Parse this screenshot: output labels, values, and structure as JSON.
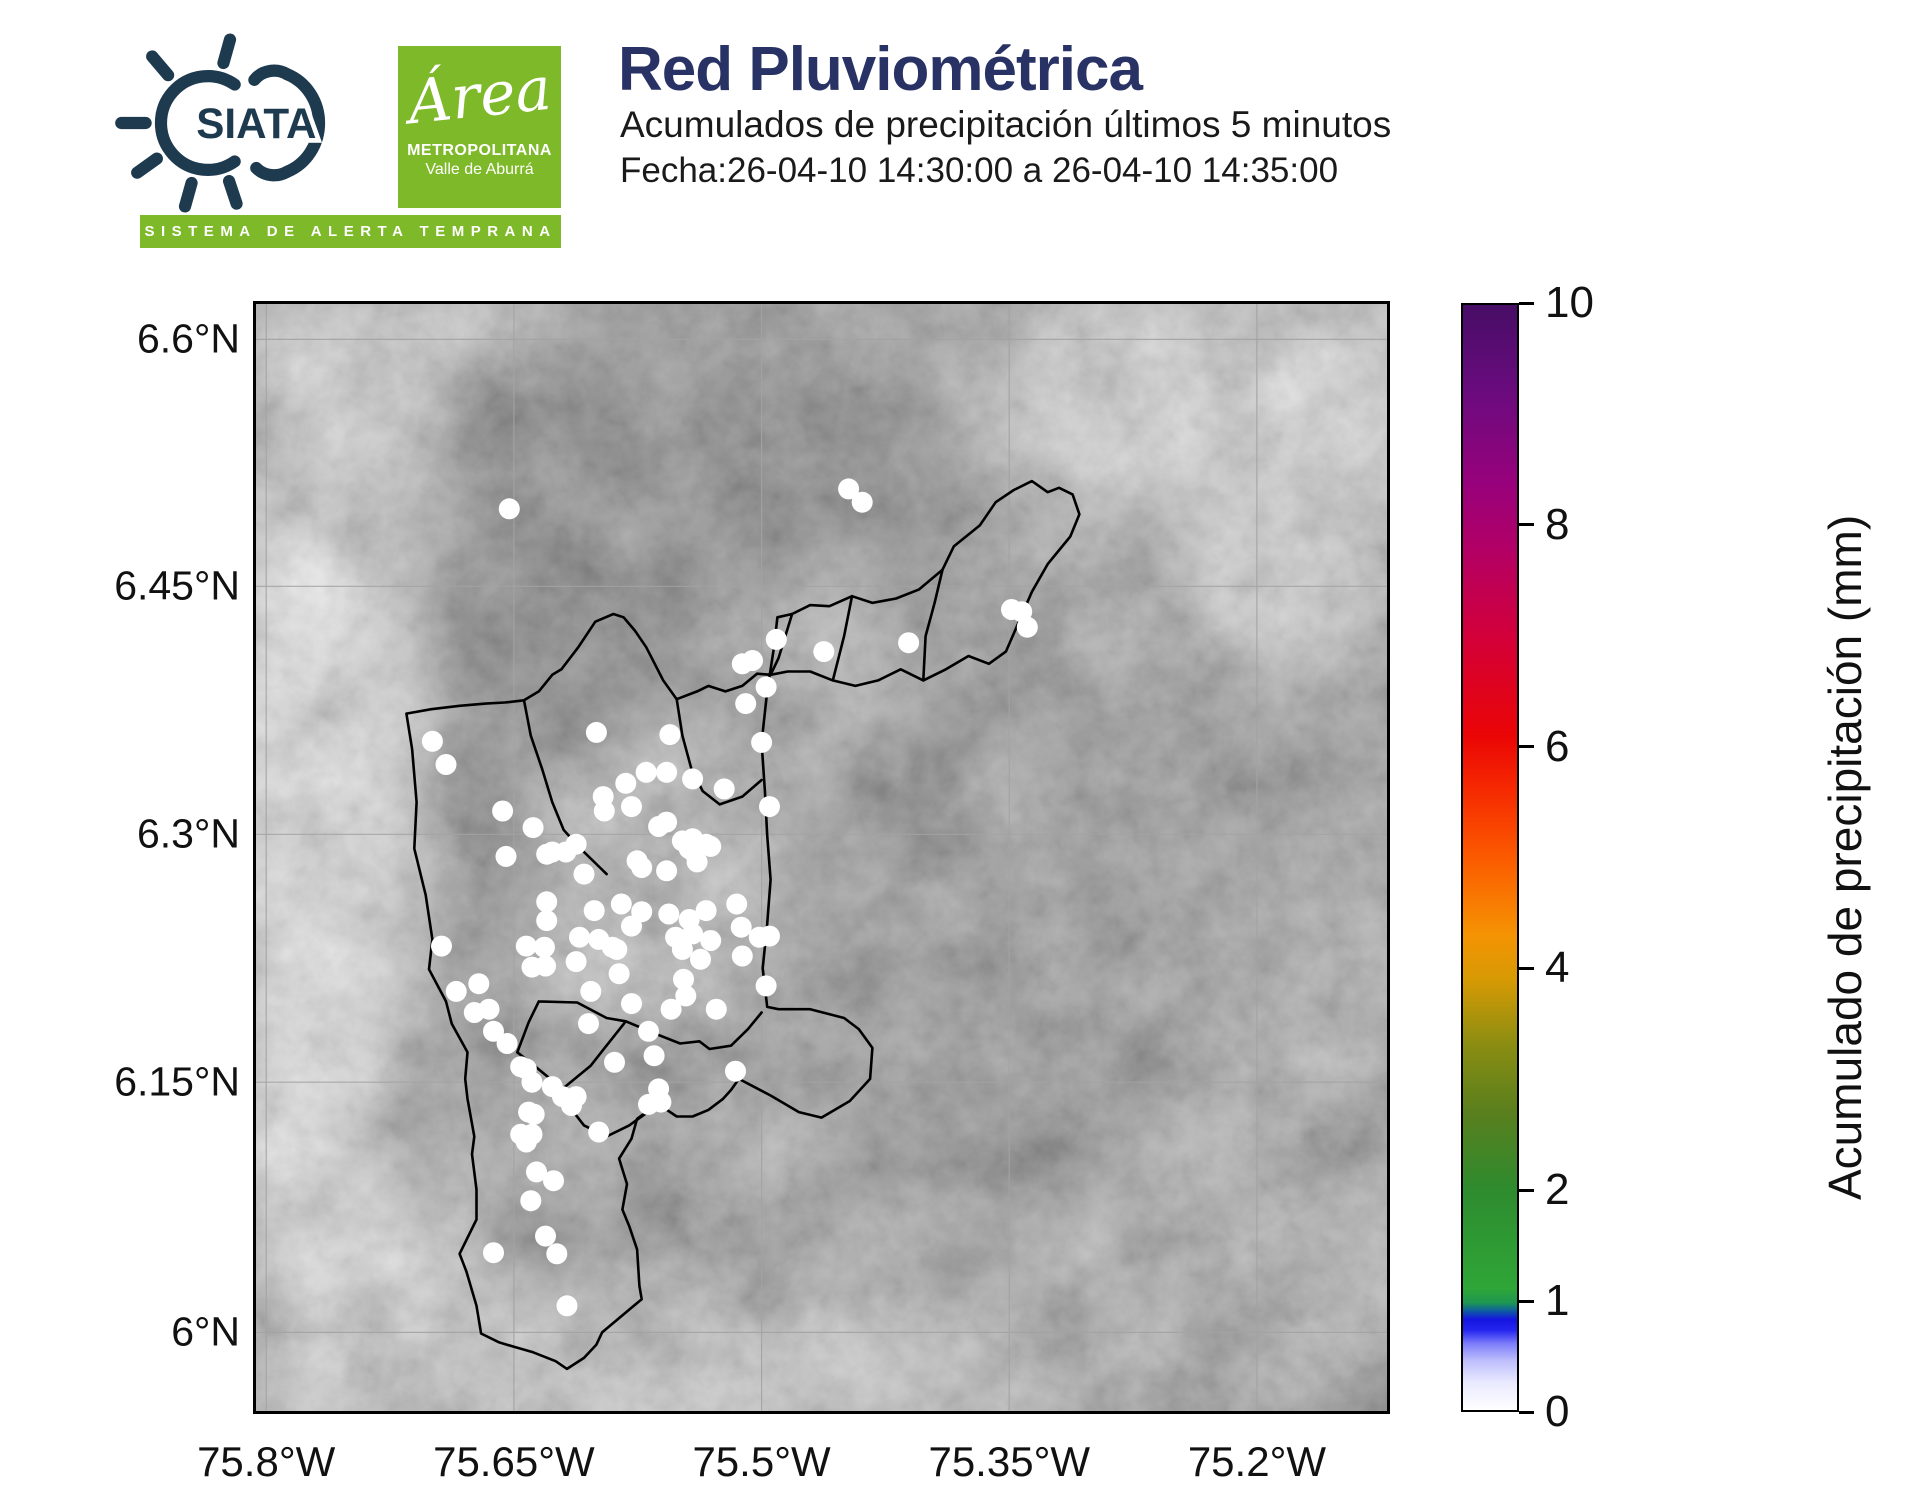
{
  "header": {
    "title": "Red Pluviométrica",
    "subtitle": "Acumulados de precipitación últimos 5 minutos",
    "date_line": "Fecha:26-04-10 14:30:00 a 26-04-10 14:35:00",
    "siata_text": "SIATA",
    "banner_text": "SISTEMA DE ALERTA TEMPRANA",
    "amva": {
      "script": "Área",
      "line1": "METROPOLITANA",
      "line2": "Valle de Aburrá"
    }
  },
  "colors": {
    "brand_green": "#7db928",
    "brand_navy": "#1e3a4f",
    "title_navy": "#293264",
    "station_marker": "#ffffff",
    "boundary": "#000000"
  },
  "map": {
    "x_ticks": [
      {
        "label": "75.8°W",
        "f": 0.009
      },
      {
        "label": "75.65°W",
        "f": 0.228
      },
      {
        "label": "75.5°W",
        "f": 0.447
      },
      {
        "label": "75.35°W",
        "f": 0.666
      },
      {
        "label": "75.2°W",
        "f": 0.885
      }
    ],
    "y_ticks": [
      {
        "label": "6.6°N",
        "f": 0.032
      },
      {
        "label": "6.45°N",
        "f": 0.255
      },
      {
        "label": "6.3°N",
        "f": 0.479
      },
      {
        "label": "6.15°N",
        "f": 0.703
      },
      {
        "label": "6°N",
        "f": 0.929
      }
    ],
    "boundaries": [
      [
        [
          0.133,
          0.37
        ],
        [
          0.138,
          0.402
        ],
        [
          0.142,
          0.45
        ],
        [
          0.14,
          0.492
        ],
        [
          0.15,
          0.534
        ],
        [
          0.156,
          0.574
        ],
        [
          0.153,
          0.601
        ],
        [
          0.168,
          0.63
        ],
        [
          0.173,
          0.65
        ],
        [
          0.187,
          0.676
        ],
        [
          0.185,
          0.7
        ],
        [
          0.187,
          0.718
        ],
        [
          0.193,
          0.752
        ],
        [
          0.191,
          0.768
        ],
        [
          0.195,
          0.8
        ],
        [
          0.195,
          0.827
        ],
        [
          0.18,
          0.858
        ],
        [
          0.186,
          0.874
        ],
        [
          0.195,
          0.905
        ],
        [
          0.199,
          0.93
        ],
        [
          0.215,
          0.938
        ],
        [
          0.228,
          0.942
        ],
        [
          0.245,
          0.947
        ],
        [
          0.265,
          0.955
        ],
        [
          0.275,
          0.962
        ],
        [
          0.29,
          0.952
        ],
        [
          0.301,
          0.94
        ],
        [
          0.306,
          0.929
        ],
        [
          0.327,
          0.911
        ],
        [
          0.341,
          0.899
        ],
        [
          0.339,
          0.887
        ],
        [
          0.337,
          0.854
        ],
        [
          0.33,
          0.833
        ],
        [
          0.324,
          0.818
        ],
        [
          0.328,
          0.795
        ],
        [
          0.321,
          0.772
        ],
        [
          0.332,
          0.754
        ],
        [
          0.337,
          0.736
        ],
        [
          0.349,
          0.727
        ],
        [
          0.359,
          0.725
        ],
        [
          0.372,
          0.734
        ],
        [
          0.386,
          0.734
        ],
        [
          0.4,
          0.728
        ],
        [
          0.413,
          0.718
        ],
        [
          0.42,
          0.71
        ],
        [
          0.427,
          0.7
        ],
        [
          0.442,
          0.708
        ],
        [
          0.455,
          0.715
        ],
        [
          0.48,
          0.73
        ],
        [
          0.5,
          0.735
        ],
        [
          0.525,
          0.72
        ],
        [
          0.543,
          0.7
        ],
        [
          0.545,
          0.672
        ],
        [
          0.533,
          0.655
        ],
        [
          0.52,
          0.645
        ],
        [
          0.49,
          0.637
        ],
        [
          0.462,
          0.637
        ],
        [
          0.452,
          0.635
        ],
        [
          0.448,
          0.6
        ],
        [
          0.452,
          0.56
        ],
        [
          0.455,
          0.52
        ],
        [
          0.452,
          0.48
        ],
        [
          0.45,
          0.44
        ],
        [
          0.447,
          0.396
        ],
        [
          0.452,
          0.35
        ],
        [
          0.458,
          0.31
        ],
        [
          0.461,
          0.283
        ],
        [
          0.474,
          0.28
        ],
        [
          0.49,
          0.272
        ],
        [
          0.507,
          0.273
        ],
        [
          0.527,
          0.264
        ],
        [
          0.545,
          0.27
        ],
        [
          0.566,
          0.266
        ],
        [
          0.586,
          0.258
        ],
        [
          0.607,
          0.24
        ],
        [
          0.617,
          0.219
        ],
        [
          0.64,
          0.2
        ],
        [
          0.654,
          0.179
        ],
        [
          0.67,
          0.168
        ],
        [
          0.686,
          0.16
        ],
        [
          0.7,
          0.17
        ],
        [
          0.71,
          0.166
        ],
        [
          0.722,
          0.172
        ],
        [
          0.728,
          0.19
        ],
        [
          0.72,
          0.21
        ],
        [
          0.7,
          0.235
        ],
        [
          0.686,
          0.26
        ],
        [
          0.663,
          0.314
        ],
        [
          0.648,
          0.325
        ],
        [
          0.63,
          0.318
        ],
        [
          0.61,
          0.33
        ],
        [
          0.59,
          0.34
        ],
        [
          0.57,
          0.33
        ],
        [
          0.55,
          0.34
        ],
        [
          0.53,
          0.345
        ],
        [
          0.51,
          0.34
        ],
        [
          0.49,
          0.332
        ],
        [
          0.47,
          0.332
        ],
        [
          0.455,
          0.335
        ],
        [
          0.443,
          0.334
        ],
        [
          0.43,
          0.345
        ],
        [
          0.415,
          0.35
        ],
        [
          0.4,
          0.345
        ],
        [
          0.39,
          0.35
        ],
        [
          0.372,
          0.357
        ],
        [
          0.36,
          0.34
        ],
        [
          0.345,
          0.31
        ],
        [
          0.335,
          0.295
        ],
        [
          0.325,
          0.283
        ],
        [
          0.316,
          0.28
        ],
        [
          0.3,
          0.287
        ],
        [
          0.285,
          0.31
        ],
        [
          0.27,
          0.33
        ],
        [
          0.262,
          0.335
        ],
        [
          0.25,
          0.35
        ],
        [
          0.237,
          0.358
        ],
        [
          0.22,
          0.36
        ],
        [
          0.203,
          0.361
        ],
        [
          0.18,
          0.363
        ],
        [
          0.155,
          0.366
        ],
        [
          0.133,
          0.37
        ]
      ],
      [
        [
          0.25,
          0.63
        ],
        [
          0.284,
          0.631
        ],
        [
          0.31,
          0.645
        ],
        [
          0.327,
          0.648
        ],
        [
          0.306,
          0.675
        ],
        [
          0.296,
          0.688
        ],
        [
          0.271,
          0.709
        ],
        [
          0.246,
          0.688
        ],
        [
          0.231,
          0.676
        ],
        [
          0.241,
          0.649
        ],
        [
          0.25,
          0.63
        ]
      ],
      [
        [
          0.327,
          0.648
        ],
        [
          0.355,
          0.66
        ],
        [
          0.375,
          0.668
        ],
        [
          0.392,
          0.666
        ],
        [
          0.401,
          0.673
        ],
        [
          0.42,
          0.67
        ],
        [
          0.435,
          0.655
        ],
        [
          0.447,
          0.64
        ]
      ],
      [
        [
          0.271,
          0.709
        ],
        [
          0.277,
          0.725
        ],
        [
          0.29,
          0.742
        ],
        [
          0.31,
          0.752
        ],
        [
          0.33,
          0.742
        ],
        [
          0.345,
          0.731
        ],
        [
          0.359,
          0.725
        ]
      ],
      [
        [
          0.237,
          0.358
        ],
        [
          0.243,
          0.39
        ],
        [
          0.253,
          0.42
        ],
        [
          0.262,
          0.45
        ],
        [
          0.272,
          0.475
        ],
        [
          0.285,
          0.49
        ],
        [
          0.3,
          0.505
        ],
        [
          0.31,
          0.515
        ]
      ],
      [
        [
          0.372,
          0.357
        ],
        [
          0.377,
          0.39
        ],
        [
          0.385,
          0.42
        ],
        [
          0.395,
          0.44
        ],
        [
          0.41,
          0.452
        ],
        [
          0.43,
          0.445
        ],
        [
          0.447,
          0.43
        ]
      ],
      [
        [
          0.474,
          0.28
        ],
        [
          0.468,
          0.3
        ],
        [
          0.462,
          0.32
        ],
        [
          0.455,
          0.335
        ]
      ],
      [
        [
          0.527,
          0.264
        ],
        [
          0.52,
          0.3
        ],
        [
          0.515,
          0.32
        ],
        [
          0.51,
          0.34
        ]
      ],
      [
        [
          0.607,
          0.24
        ],
        [
          0.6,
          0.27
        ],
        [
          0.592,
          0.3
        ],
        [
          0.59,
          0.34
        ]
      ]
    ],
    "stations": [
      [
        0.224,
        0.185
      ],
      [
        0.524,
        0.167
      ],
      [
        0.536,
        0.179
      ],
      [
        0.668,
        0.276
      ],
      [
        0.677,
        0.278
      ],
      [
        0.682,
        0.292
      ],
      [
        0.577,
        0.306
      ],
      [
        0.502,
        0.314
      ],
      [
        0.46,
        0.303
      ],
      [
        0.439,
        0.322
      ],
      [
        0.43,
        0.325
      ],
      [
        0.433,
        0.361
      ],
      [
        0.451,
        0.346
      ],
      [
        0.156,
        0.395
      ],
      [
        0.168,
        0.416
      ],
      [
        0.218,
        0.458
      ],
      [
        0.245,
        0.473
      ],
      [
        0.262,
        0.495
      ],
      [
        0.283,
        0.488
      ],
      [
        0.301,
        0.387
      ],
      [
        0.307,
        0.445
      ],
      [
        0.308,
        0.458
      ],
      [
        0.327,
        0.433
      ],
      [
        0.332,
        0.454
      ],
      [
        0.345,
        0.423
      ],
      [
        0.363,
        0.423
      ],
      [
        0.366,
        0.389
      ],
      [
        0.377,
        0.485
      ],
      [
        0.386,
        0.483
      ],
      [
        0.356,
        0.472
      ],
      [
        0.363,
        0.468
      ],
      [
        0.383,
        0.492
      ],
      [
        0.398,
        0.488
      ],
      [
        0.402,
        0.49
      ],
      [
        0.447,
        0.396
      ],
      [
        0.414,
        0.438
      ],
      [
        0.454,
        0.454
      ],
      [
        0.386,
        0.429
      ],
      [
        0.221,
        0.499
      ],
      [
        0.257,
        0.497
      ],
      [
        0.274,
        0.495
      ],
      [
        0.29,
        0.515
      ],
      [
        0.337,
        0.503
      ],
      [
        0.341,
        0.509
      ],
      [
        0.363,
        0.512
      ],
      [
        0.387,
        0.495
      ],
      [
        0.39,
        0.504
      ],
      [
        0.398,
        0.548
      ],
      [
        0.425,
        0.542
      ],
      [
        0.429,
        0.563
      ],
      [
        0.257,
        0.54
      ],
      [
        0.257,
        0.557
      ],
      [
        0.239,
        0.58
      ],
      [
        0.255,
        0.581
      ],
      [
        0.256,
        0.598
      ],
      [
        0.244,
        0.599
      ],
      [
        0.283,
        0.594
      ],
      [
        0.286,
        0.572
      ],
      [
        0.299,
        0.548
      ],
      [
        0.303,
        0.574
      ],
      [
        0.315,
        0.581
      ],
      [
        0.319,
        0.583
      ],
      [
        0.323,
        0.542
      ],
      [
        0.332,
        0.562
      ],
      [
        0.341,
        0.549
      ],
      [
        0.365,
        0.551
      ],
      [
        0.371,
        0.572
      ],
      [
        0.377,
        0.583
      ],
      [
        0.383,
        0.556
      ],
      [
        0.386,
        0.569
      ],
      [
        0.393,
        0.592
      ],
      [
        0.402,
        0.575
      ],
      [
        0.43,
        0.589
      ],
      [
        0.445,
        0.572
      ],
      [
        0.454,
        0.571
      ],
      [
        0.164,
        0.58
      ],
      [
        0.177,
        0.621
      ],
      [
        0.197,
        0.614
      ],
      [
        0.193,
        0.64
      ],
      [
        0.206,
        0.637
      ],
      [
        0.21,
        0.657
      ],
      [
        0.222,
        0.668
      ],
      [
        0.234,
        0.689
      ],
      [
        0.239,
        0.691
      ],
      [
        0.244,
        0.703
      ],
      [
        0.262,
        0.707
      ],
      [
        0.271,
        0.716
      ],
      [
        0.283,
        0.716
      ],
      [
        0.296,
        0.621
      ],
      [
        0.294,
        0.65
      ],
      [
        0.317,
        0.685
      ],
      [
        0.321,
        0.605
      ],
      [
        0.332,
        0.632
      ],
      [
        0.347,
        0.657
      ],
      [
        0.352,
        0.679
      ],
      [
        0.356,
        0.709
      ],
      [
        0.378,
        0.61
      ],
      [
        0.38,
        0.625
      ],
      [
        0.367,
        0.637
      ],
      [
        0.407,
        0.637
      ],
      [
        0.424,
        0.693
      ],
      [
        0.451,
        0.616
      ],
      [
        0.241,
        0.73
      ],
      [
        0.234,
        0.75
      ],
      [
        0.244,
        0.75
      ],
      [
        0.303,
        0.748
      ],
      [
        0.279,
        0.724
      ],
      [
        0.246,
        0.732
      ],
      [
        0.239,
        0.757
      ],
      [
        0.347,
        0.723
      ],
      [
        0.358,
        0.721
      ],
      [
        0.248,
        0.784
      ],
      [
        0.263,
        0.792
      ],
      [
        0.243,
        0.81
      ],
      [
        0.256,
        0.842
      ],
      [
        0.266,
        0.858
      ],
      [
        0.21,
        0.857
      ],
      [
        0.275,
        0.905
      ]
    ]
  },
  "colorbar": {
    "label": "Acumulado de precipitación (mm)",
    "range": [
      0,
      10
    ],
    "ticks": [
      {
        "value": "0",
        "f": 0.0
      },
      {
        "value": "1",
        "f": 0.1
      },
      {
        "value": "2",
        "f": 0.2
      },
      {
        "value": "4",
        "f": 0.4
      },
      {
        "value": "6",
        "f": 0.6
      },
      {
        "value": "8",
        "f": 0.8
      },
      {
        "value": "10",
        "f": 1.0
      }
    ],
    "gradient": [
      {
        "v": 0,
        "c": "#ffffff"
      },
      {
        "v": 0.25,
        "c": "#e9e9ff"
      },
      {
        "v": 0.45,
        "c": "#bdbdfd"
      },
      {
        "v": 0.6,
        "c": "#7d7dfa"
      },
      {
        "v": 0.72,
        "c": "#2626f0"
      },
      {
        "v": 0.82,
        "c": "#1414e0"
      },
      {
        "v": 0.9,
        "c": "#0e5f9e"
      },
      {
        "v": 0.97,
        "c": "#1e9751"
      },
      {
        "v": 1.1,
        "c": "#2fa637"
      },
      {
        "v": 2,
        "c": "#2e8b2e"
      },
      {
        "v": 2.7,
        "c": "#5a7f1e"
      },
      {
        "v": 3.3,
        "c": "#8a8d12"
      },
      {
        "v": 3.9,
        "c": "#d79a04"
      },
      {
        "v": 4.3,
        "c": "#f59303"
      },
      {
        "v": 5,
        "c": "#fb5a00"
      },
      {
        "v": 5.6,
        "c": "#f62a01"
      },
      {
        "v": 6.1,
        "c": "#ea0505"
      },
      {
        "v": 7,
        "c": "#d3003a"
      },
      {
        "v": 7.8,
        "c": "#b20066"
      },
      {
        "v": 8.4,
        "c": "#97017c"
      },
      {
        "v": 9.2,
        "c": "#6b0b7e"
      },
      {
        "v": 10,
        "c": "#470d66"
      }
    ]
  },
  "chart_data": {
    "type": "scatter",
    "title": "Red Pluviométrica",
    "subtitle": "Acumulados de precipitación últimos 5 minutos",
    "date_range": "26-04-10 14:30:00 a 26-04-10 14:35:00",
    "x_axis": {
      "tick_labels": [
        "75.8°W",
        "75.65°W",
        "75.5°W",
        "75.35°W",
        "75.2°W"
      ]
    },
    "y_axis": {
      "tick_labels": [
        "6.6°N",
        "6.45°N",
        "6.3°N",
        "6.15°N",
        "6°N"
      ]
    },
    "colorbar": {
      "label": "Acumulado de precipitación (mm)",
      "range": [
        0,
        10
      ],
      "ticks": [
        0,
        1,
        2,
        4,
        6,
        8,
        10
      ]
    },
    "stations_plotted": 118,
    "marker_color": "#ffffff",
    "grid": true,
    "basemap": "grayscale terrain with municipality boundaries"
  }
}
